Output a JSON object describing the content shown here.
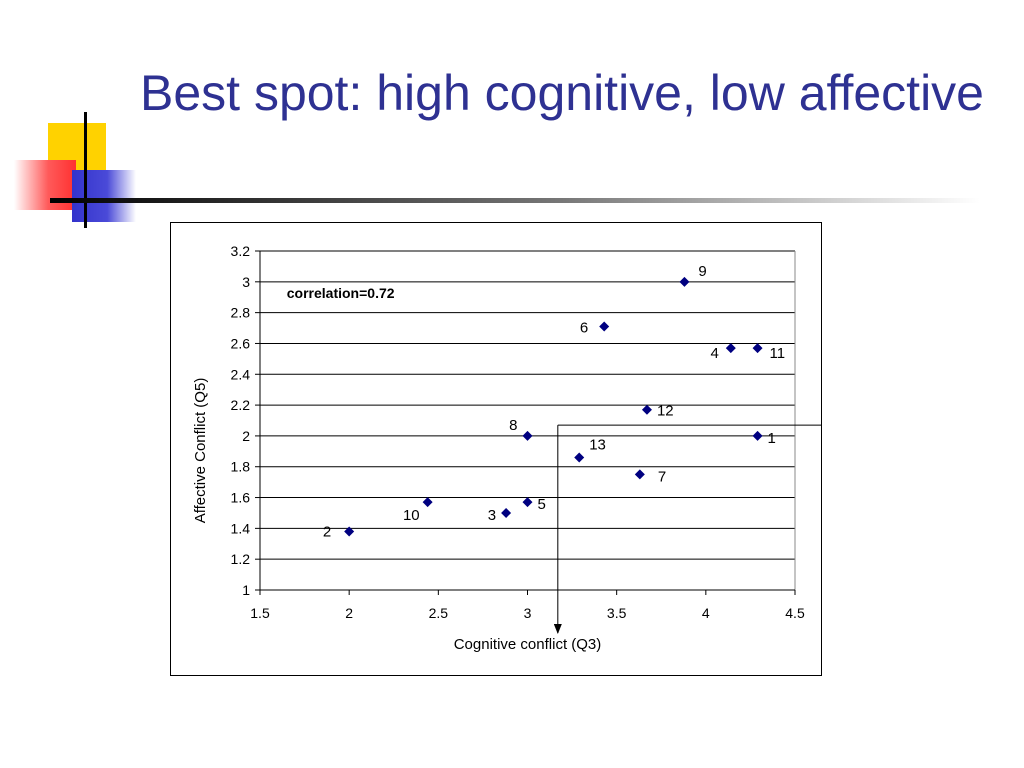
{
  "slide": {
    "title": "Best spot: high cognitive, low affective"
  },
  "chart_data": {
    "type": "scatter",
    "xlabel": "Cognitive conflict (Q3)",
    "ylabel": "Affective Conflict (Q5)",
    "xlim": [
      1.5,
      4.5
    ],
    "ylim": [
      1,
      3.2
    ],
    "x_ticks": [
      "1.5",
      "2",
      "2.5",
      "3",
      "3.5",
      "4",
      "4.5"
    ],
    "y_ticks": [
      "1",
      "1.2",
      "1.4",
      "1.6",
      "1.8",
      "2",
      "2.2",
      "2.4",
      "2.6",
      "2.8",
      "3",
      "3.2"
    ],
    "grid": "horizontal",
    "annotation": "correlation=0.72",
    "marker_color": "#000080",
    "points": [
      {
        "label": "1",
        "x": 4.29,
        "y": 2.0
      },
      {
        "label": "2",
        "x": 2.0,
        "y": 1.38
      },
      {
        "label": "3",
        "x": 2.88,
        "y": 1.5
      },
      {
        "label": "4",
        "x": 4.14,
        "y": 2.57
      },
      {
        "label": "5",
        "x": 3.0,
        "y": 1.57
      },
      {
        "label": "6",
        "x": 3.43,
        "y": 2.71
      },
      {
        "label": "7",
        "x": 3.63,
        "y": 1.75
      },
      {
        "label": "8",
        "x": 3.0,
        "y": 2.0
      },
      {
        "label": "9",
        "x": 3.88,
        "y": 3.0
      },
      {
        "label": "10",
        "x": 2.44,
        "y": 1.57
      },
      {
        "label": "11",
        "x": 4.29,
        "y": 2.57
      },
      {
        "label": "12",
        "x": 3.67,
        "y": 2.17
      },
      {
        "label": "13",
        "x": 3.29,
        "y": 1.86
      }
    ],
    "divider": {
      "x": 3.17,
      "y": 2.07
    }
  }
}
